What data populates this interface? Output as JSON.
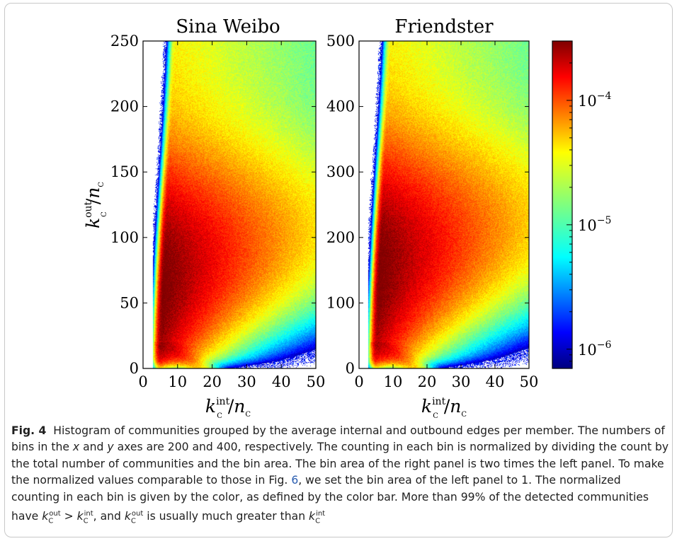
{
  "figure": {
    "label": "Fig. 4",
    "caption_part1": "Histogram of communities grouped by the average internal and outbound edges per member. The numbers of bins in the ",
    "caption_x": "x",
    "caption_part2": " and ",
    "caption_y": "y",
    "caption_part3": " axes are 200 and 400, respectively. The counting in each bin is normalized by dividing the count by the total number of communities and the bin area. The bin area of the right panel is two times the left panel. To make the normalized values comparable to those in Fig. ",
    "caption_ref": "6",
    "caption_part4": ", we set the bin area of the left panel to 1. The normalized counting in each bin is given by the color, as defined by the color bar. More than 99% of the detected communities have ",
    "caption_part5": ", and ",
    "caption_part6": " is usually much greater than "
  },
  "chart_data": [
    {
      "type": "heatmap",
      "title": "Sina Weibo",
      "xlabel": "k_C^int / n_C",
      "ylabel": "k_C^out / n_C",
      "xlim": [
        0,
        50
      ],
      "ylim": [
        0,
        250
      ],
      "xticks": [
        "0",
        "10",
        "20",
        "30",
        "40",
        "50"
      ],
      "yticks": [
        "0",
        "50",
        "100",
        "150",
        "200",
        "250"
      ],
      "x_bins": 200,
      "y_bins": 400,
      "peak_x": 5,
      "peak_y": 65
    },
    {
      "type": "heatmap",
      "title": "Friendster",
      "xlabel": "k_C^int / n_C",
      "xlim": [
        0,
        50
      ],
      "ylim": [
        0,
        500
      ],
      "xticks": [
        "0",
        "10",
        "20",
        "30",
        "40",
        "50"
      ],
      "yticks": [
        "0",
        "100",
        "200",
        "300",
        "400",
        "500"
      ],
      "x_bins": 200,
      "y_bins": 400,
      "peak_x": 5,
      "peak_y": 150
    }
  ],
  "colorbar": {
    "scale": "log",
    "range": [
      7e-07,
      0.0003
    ],
    "colormap": "jet",
    "ticks": [
      {
        "value": 0.0001,
        "base": "10",
        "exp": "−4"
      },
      {
        "value": 1e-05,
        "base": "10",
        "exp": "−5"
      },
      {
        "value": 1e-06,
        "base": "10",
        "exp": "−6"
      }
    ]
  }
}
